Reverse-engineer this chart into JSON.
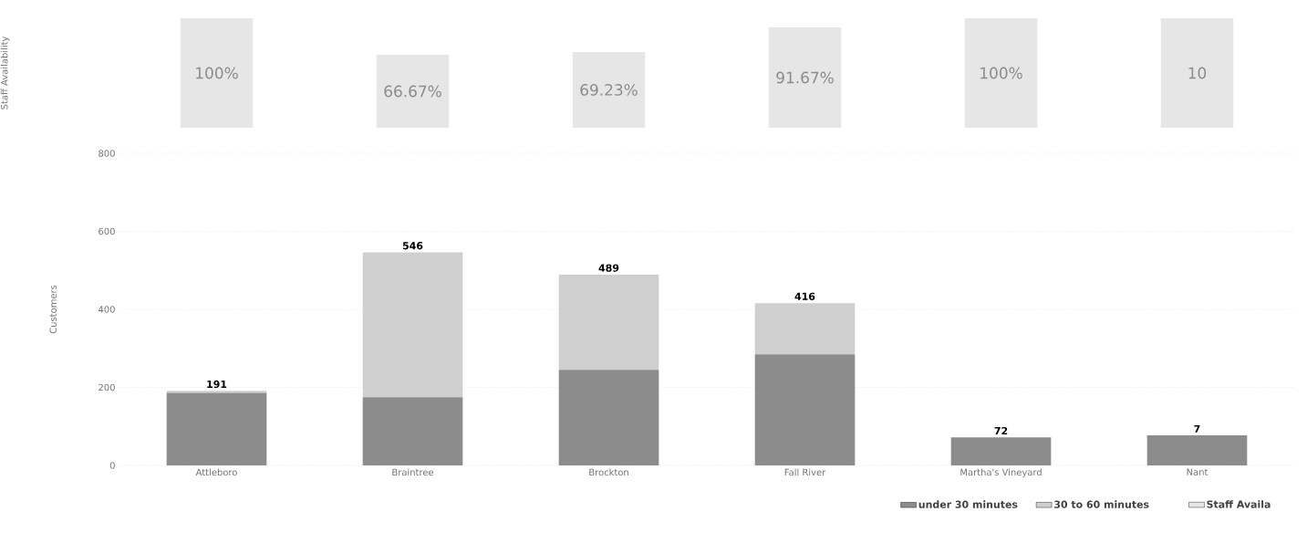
{
  "chart_data": [
    {
      "type": "bar",
      "ylabel": "Staff Availability",
      "series": [
        {
          "name": "Staff Availa",
          "color": "#e6e6e6",
          "values": [
            100,
            66.67,
            69.23,
            91.67,
            100,
            100
          ],
          "value_labels": [
            "100%",
            "66.67%",
            "69.23%",
            "91.67%",
            "100%",
            null
          ]
        }
      ],
      "annotations": [
        "10"
      ],
      "legend": "bottom right"
    },
    {
      "type": "bar",
      "stacked": true,
      "ylabel": "Customers",
      "categories": [
        "Attleboro",
        "Braintree",
        "Brockton",
        "Fall River",
        "Martha's Vineyard",
        "Nant"
      ],
      "series": [
        {
          "name": "under 30 minutes",
          "color": "#8c8c8c",
          "values": [
            186,
            175,
            245,
            285,
            72,
            77
          ]
        },
        {
          "name": "30 to 60 minutes",
          "color": "#cfcfcf",
          "values": [
            5,
            371,
            244,
            131,
            0,
            0
          ]
        }
      ],
      "totals": [
        "191",
        "546",
        "489",
        "416",
        "72",
        null
      ],
      "annotations": [
        {
          "text": "7",
          "x": "Nant",
          "y": 77
        }
      ],
      "ylim": [
        0,
        800
      ],
      "yticks": [
        0,
        200,
        400,
        600,
        800
      ],
      "grid": "y",
      "legend": "bottom right"
    }
  ]
}
